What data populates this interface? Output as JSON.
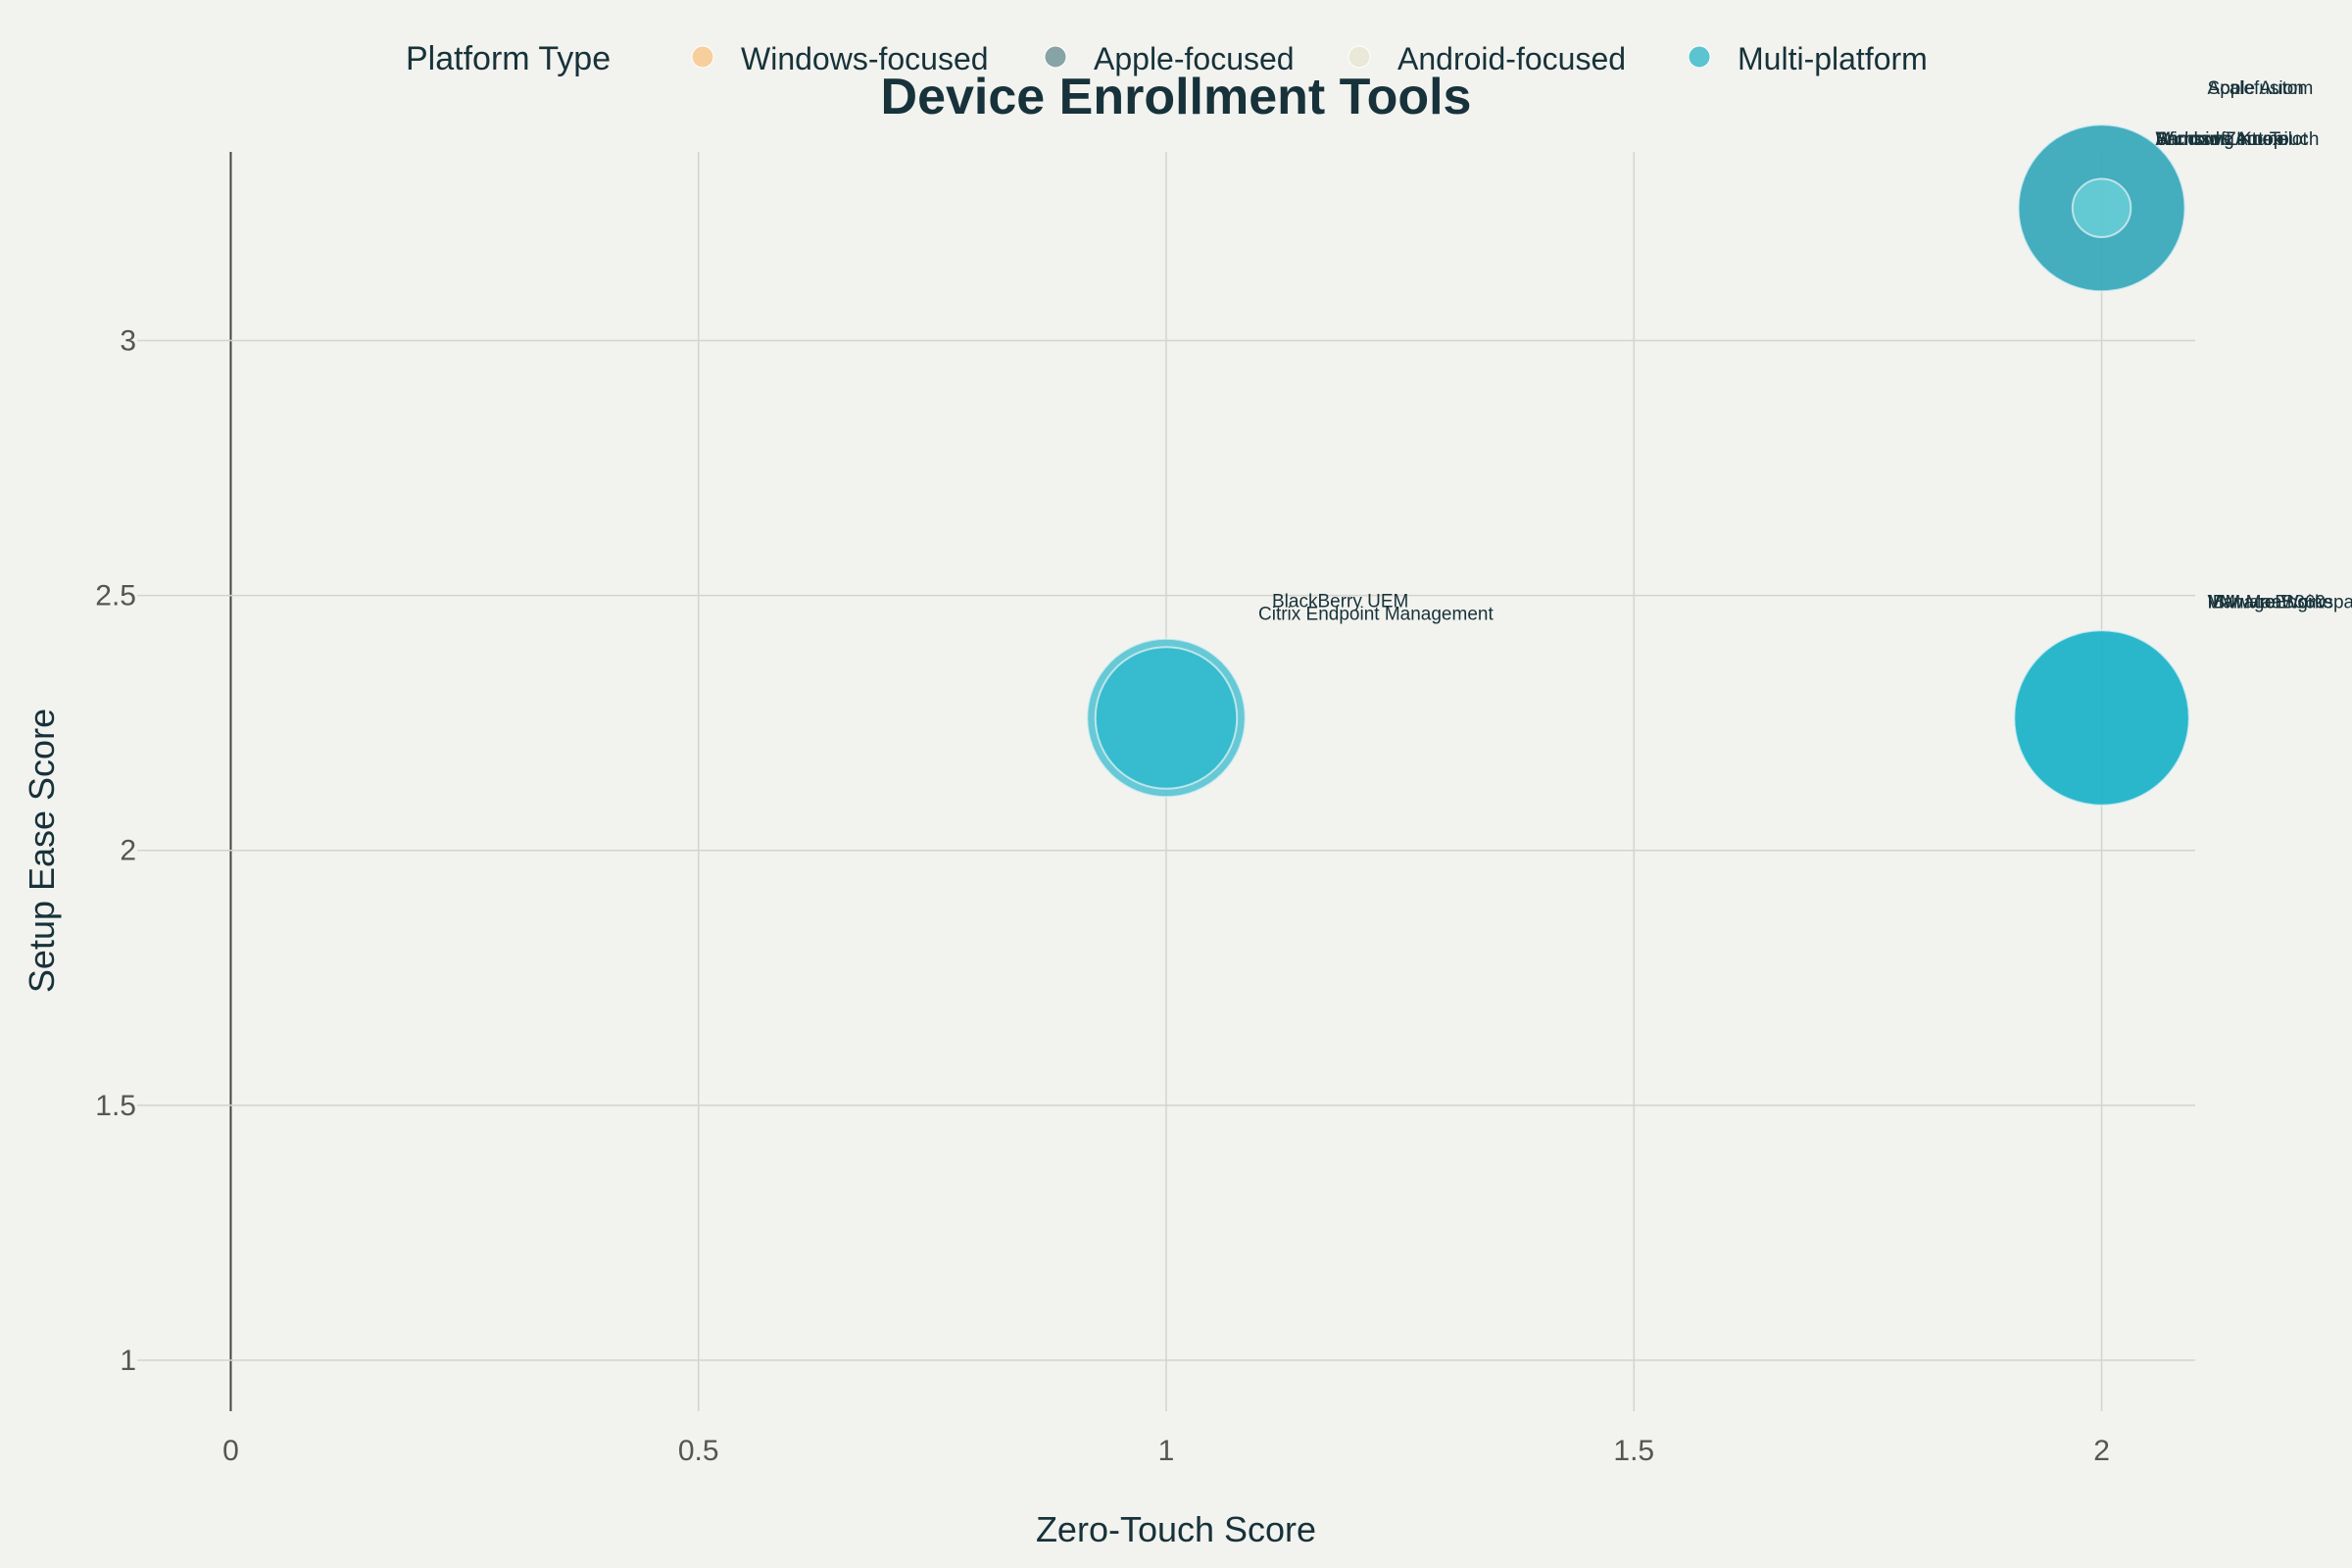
{
  "chart_data": {
    "type": "scatter",
    "title": "Device Enrollment Tools",
    "xlabel": "Zero-Touch Score",
    "ylabel": "Setup Ease Score",
    "xlim": [
      -0.1,
      2.1
    ],
    "ylim": [
      0.9,
      3.37
    ],
    "xticks": [
      0,
      0.5,
      1,
      1.5,
      2
    ],
    "xtick_labels": [
      "0",
      "0.5",
      "1",
      "1.5",
      "2"
    ],
    "yticks": [
      1,
      1.5,
      2,
      2.5,
      3
    ],
    "ytick_labels": [
      "1",
      "1.5",
      "2",
      "2.5",
      "3"
    ],
    "grid": true,
    "legend": {
      "title": "Platform Type",
      "placement": "top-center",
      "items": [
        {
          "name": "Windows-focused",
          "color": "#f7cf9c"
        },
        {
          "name": "Apple-focused",
          "color": "#87a3a6"
        },
        {
          "name": "Android-focused",
          "color": "#eae9d8"
        },
        {
          "name": "Multi-platform",
          "color": "#5bc4d0"
        }
      ]
    },
    "bubbles": [
      {
        "x": 2,
        "y": 3.26,
        "size": 1.0,
        "color": "#3aa9bb",
        "opacity": 0.95
      },
      {
        "x": 2,
        "y": 3.26,
        "size": 0.35,
        "color": "#6ccfd8",
        "opacity": 0.8
      },
      {
        "x": 2,
        "y": 2.26,
        "size": 1.05,
        "color": "#1fb3c8",
        "opacity": 0.95
      },
      {
        "x": 1,
        "y": 2.26,
        "size": 0.95,
        "color": "#5ec6d3",
        "opacity": 0.95
      },
      {
        "x": 1,
        "y": 2.26,
        "size": 0.85,
        "color": "#2fb8cc",
        "opacity": 0.85
      }
    ],
    "annotations": [
      {
        "text": "Apple Autom",
        "x": 2,
        "y": 3.26,
        "slot": "upper"
      },
      {
        "text": "Scalefusion",
        "x": 2,
        "y": 3.26,
        "slot": "upper"
      },
      {
        "text": "Microsoft Intune",
        "x": 2,
        "y": 3.26,
        "slot": "middle"
      },
      {
        "text": "Samsung Knox",
        "x": 2,
        "y": 3.26,
        "slot": "middle"
      },
      {
        "text": "Android Zero-Touch",
        "x": 2,
        "y": 3.26,
        "slot": "middle"
      },
      {
        "text": "Windows Autopilot",
        "x": 2,
        "y": 3.26,
        "slot": "middle"
      },
      {
        "text": "VMware Workspace ONE",
        "x": 2,
        "y": 2.26,
        "slot": "right"
      },
      {
        "text": "IBM MaaS360",
        "x": 2,
        "y": 2.26,
        "slot": "right"
      },
      {
        "text": "ManageEngine",
        "x": 2,
        "y": 2.26,
        "slot": "right"
      },
      {
        "text": "BlackBerry UEM",
        "x": 1,
        "y": 2.26,
        "slot": "upper"
      },
      {
        "text": "Citrix Endpoint Management",
        "x": 1,
        "y": 2.26,
        "slot": "lower"
      }
    ]
  }
}
